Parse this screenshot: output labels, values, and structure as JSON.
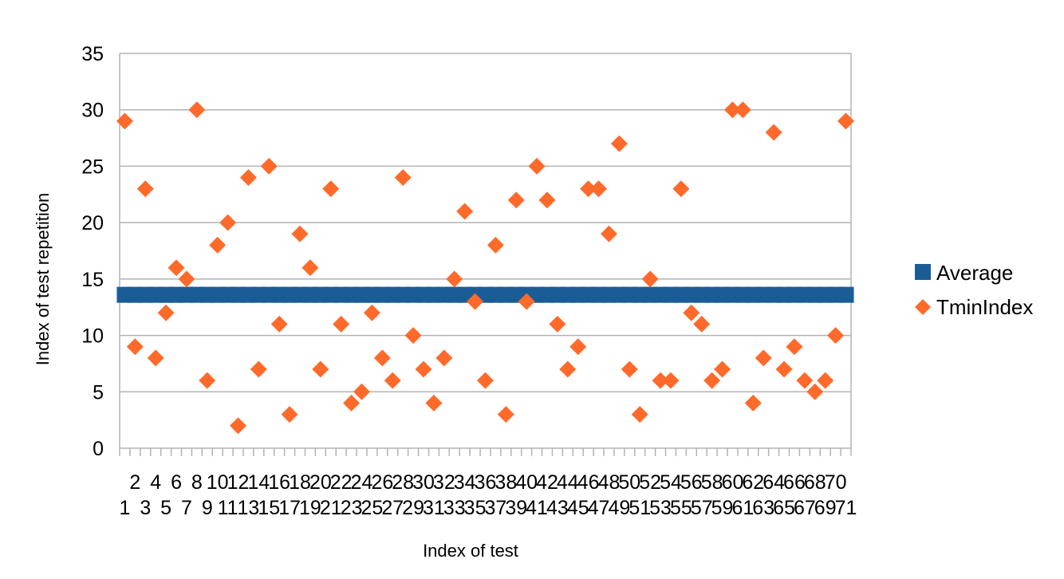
{
  "chart_data": {
    "type": "scatter",
    "title": "",
    "xlabel": "Index of test",
    "ylabel": "Index of test repetition",
    "ylim": [
      0,
      35
    ],
    "yticks": [
      0,
      5,
      10,
      15,
      20,
      25,
      30,
      35
    ],
    "x": [
      1,
      2,
      3,
      4,
      5,
      6,
      7,
      8,
      9,
      10,
      11,
      12,
      13,
      14,
      15,
      16,
      17,
      18,
      19,
      20,
      21,
      22,
      23,
      24,
      25,
      26,
      27,
      28,
      29,
      30,
      31,
      32,
      33,
      34,
      35,
      36,
      37,
      38,
      39,
      40,
      41,
      42,
      43,
      44,
      45,
      46,
      47,
      48,
      49,
      50,
      51,
      52,
      53,
      54,
      55,
      56,
      57,
      58,
      59,
      60,
      61,
      62,
      63,
      64,
      65,
      66,
      67,
      68,
      69,
      70,
      71
    ],
    "series": [
      {
        "name": "Average",
        "marker": "square",
        "color": "#1a5c96",
        "values": [
          13.6,
          13.6,
          13.6,
          13.6,
          13.6,
          13.6,
          13.6,
          13.6,
          13.6,
          13.6,
          13.6,
          13.6,
          13.6,
          13.6,
          13.6,
          13.6,
          13.6,
          13.6,
          13.6,
          13.6,
          13.6,
          13.6,
          13.6,
          13.6,
          13.6,
          13.6,
          13.6,
          13.6,
          13.6,
          13.6,
          13.6,
          13.6,
          13.6,
          13.6,
          13.6,
          13.6,
          13.6,
          13.6,
          13.6,
          13.6,
          13.6,
          13.6,
          13.6,
          13.6,
          13.6,
          13.6,
          13.6,
          13.6,
          13.6,
          13.6,
          13.6,
          13.6,
          13.6,
          13.6,
          13.6,
          13.6,
          13.6,
          13.6,
          13.6,
          13.6,
          13.6,
          13.6,
          13.6,
          13.6,
          13.6,
          13.6,
          13.6,
          13.6,
          13.6,
          13.6,
          13.6
        ]
      },
      {
        "name": "TminIndex",
        "marker": "diamond",
        "color": "#ff6a2b",
        "values": [
          29,
          9,
          23,
          8,
          12,
          16,
          15,
          30,
          6,
          18,
          20,
          2,
          24,
          7,
          25,
          11,
          3,
          19,
          16,
          7,
          23,
          11,
          4,
          5,
          12,
          8,
          6,
          24,
          10,
          7,
          4,
          8,
          15,
          21,
          13,
          6,
          18,
          3,
          22,
          13,
          25,
          22,
          11,
          7,
          9,
          23,
          23,
          19,
          27,
          7,
          3,
          15,
          6,
          6,
          23,
          12,
          11,
          6,
          7,
          30,
          30,
          4,
          8,
          28,
          7,
          9,
          6,
          5,
          6,
          10,
          29
        ]
      }
    ],
    "legend_position": "right",
    "grid": true
  }
}
